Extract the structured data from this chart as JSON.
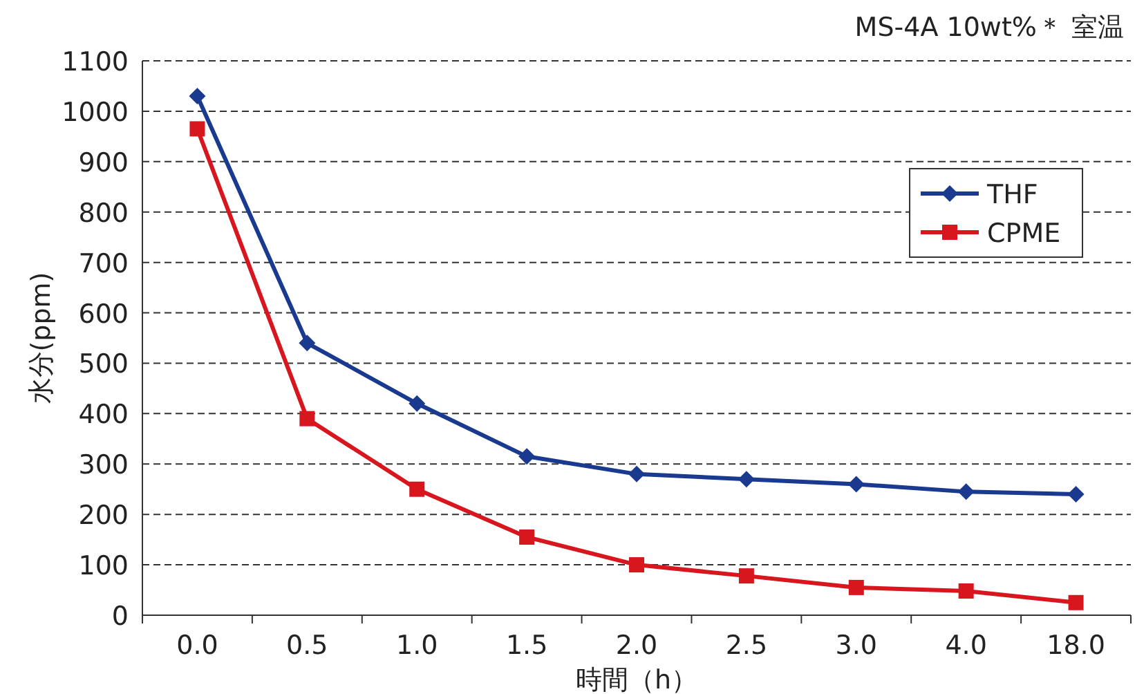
{
  "chart_data": {
    "type": "line",
    "title": "MS-4A 10wt%＊ 室温",
    "xlabel": "時間（h）",
    "ylabel": "水分(ppm)",
    "categories": [
      "0.0",
      "0.5",
      "1.0",
      "1.5",
      "2.0",
      "2.5",
      "3.0",
      "4.0",
      "18.0"
    ],
    "series": [
      {
        "name": "THF",
        "color": "#1a3a8f",
        "marker": "diamond",
        "values": [
          1030,
          540,
          420,
          315,
          280,
          270,
          260,
          245,
          240
        ]
      },
      {
        "name": "CPME",
        "color": "#d7161e",
        "marker": "square",
        "values": [
          965,
          390,
          250,
          155,
          100,
          78,
          55,
          48,
          25
        ]
      }
    ],
    "ylim": [
      0,
      1100
    ],
    "yticks": [
      0,
      100,
      200,
      300,
      400,
      500,
      600,
      700,
      800,
      900,
      1000,
      1100
    ],
    "grid": "y",
    "legend": "top right",
    "line_style": "solid"
  }
}
